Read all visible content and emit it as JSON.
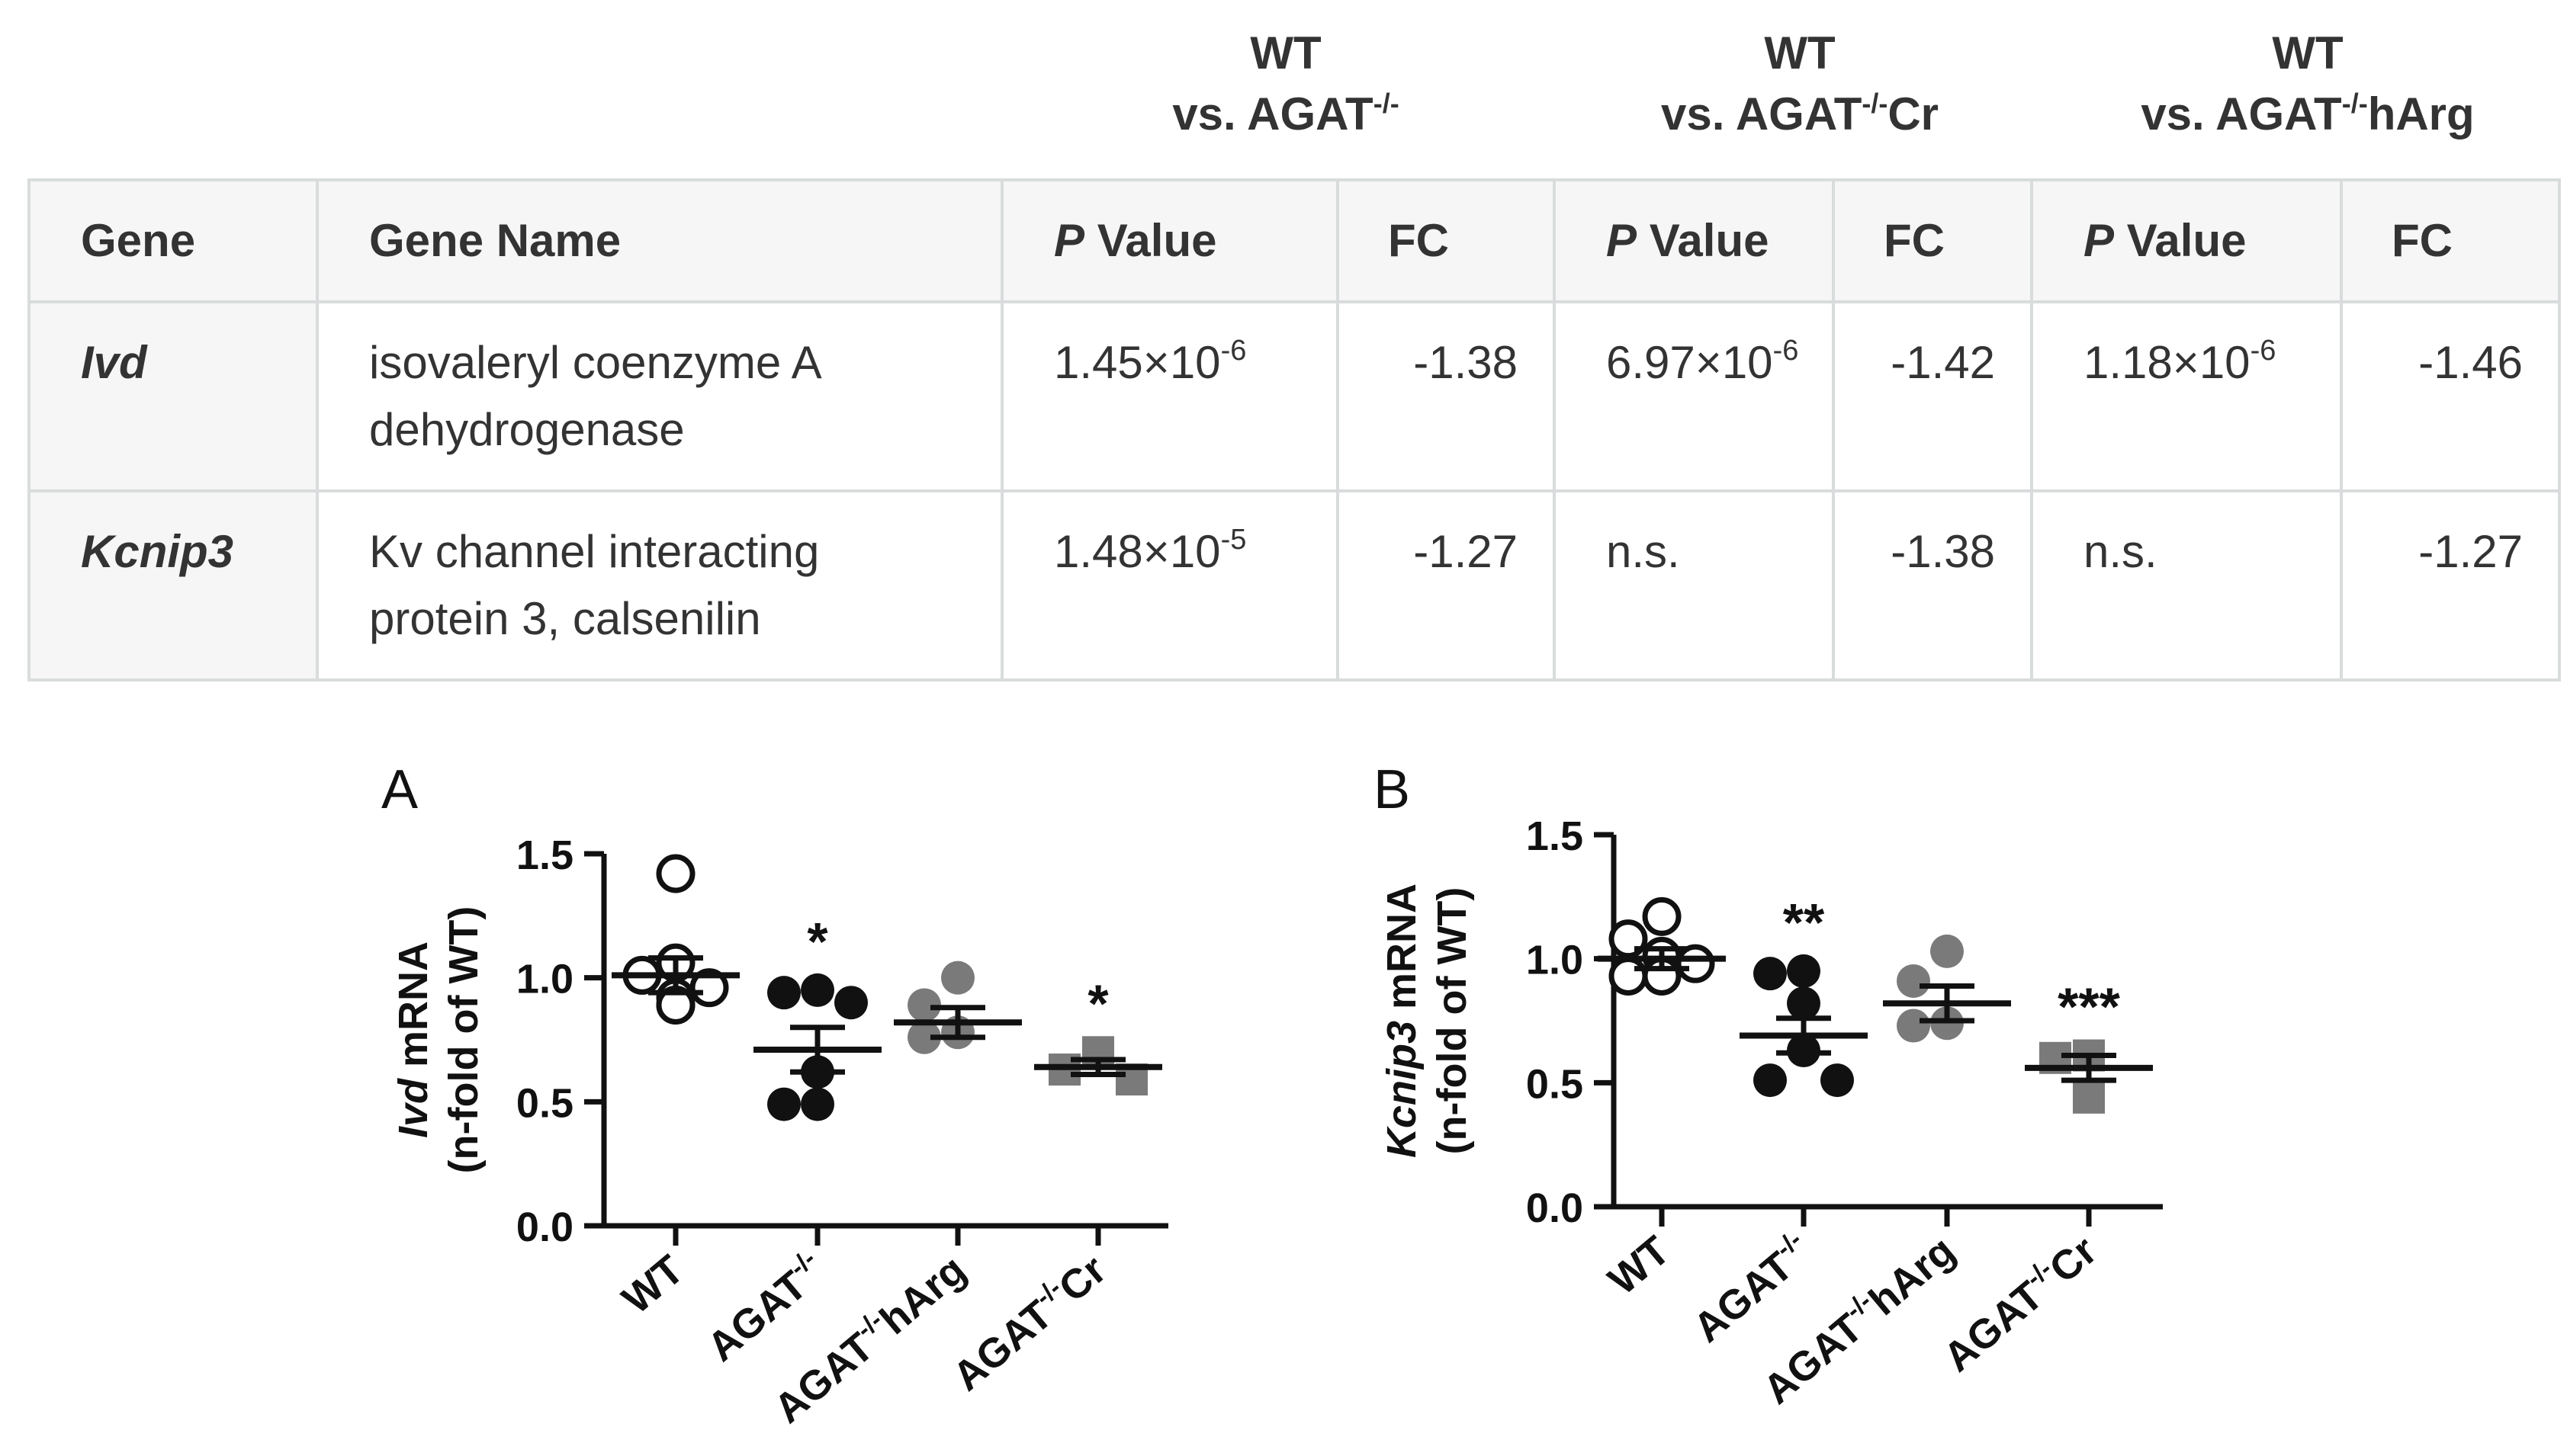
{
  "comparisons": [
    {
      "line1": "WT",
      "line2_prefix": "vs. AGAT",
      "line2_sup": "-/-",
      "line2_suffix": ""
    },
    {
      "line1": "WT",
      "line2_prefix": "vs. AGAT",
      "line2_sup": "-/-",
      "line2_suffix": "Cr"
    },
    {
      "line1": "WT",
      "line2_prefix": "vs. AGAT",
      "line2_sup": "-/-",
      "line2_suffix": "hArg"
    }
  ],
  "table": {
    "headers": {
      "gene": "Gene",
      "gene_name": "Gene Name",
      "p_italic": "P",
      "p_rest": " Value",
      "fc": "FC"
    },
    "rows": [
      {
        "gene": "Ivd",
        "name": "isovaleryl coenzyme A dehydrogenase",
        "values": [
          {
            "p": "1.45×10",
            "exp": "-6",
            "fc": "-1.38"
          },
          {
            "p": "6.97×10",
            "exp": "-6",
            "fc": "-1.42"
          },
          {
            "p": "1.18×10",
            "exp": "-6",
            "fc": "-1.46"
          }
        ]
      },
      {
        "gene": "Kcnip3",
        "name": "Kv channel interacting protein 3, calsenilin",
        "values": [
          {
            "p": "1.48×10",
            "exp": "-5",
            "fc": "-1.27"
          },
          {
            "p": "n.s.",
            "exp": "",
            "fc": "-1.38"
          },
          {
            "p": "n.s.",
            "exp": "",
            "fc": "-1.27"
          }
        ]
      }
    ]
  },
  "chart_data": [
    {
      "type": "scatter",
      "panel": "A",
      "ylabel_italic": "Ivd",
      "ylabel_rest": " mRNA",
      "ylabel_line2": "(n-fold of  WT)",
      "ylim": [
        0,
        1.5
      ],
      "yticks": [
        "0.0",
        "0.5",
        "1.0",
        "1.5"
      ],
      "groups": [
        {
          "label": "WT",
          "label_sup": "",
          "label_suffix": "",
          "color": "#ffffff",
          "stroke": "#111111",
          "marker": "circle",
          "mean": 1.01,
          "sem": 0.07,
          "points": [
            1.42,
            1.06,
            1.01,
            0.96,
            0.92,
            0.89,
            0.89
          ],
          "sig": ""
        },
        {
          "label": "AGAT",
          "label_sup": "-/-",
          "label_suffix": "",
          "color": "#111111",
          "stroke": "#111111",
          "marker": "circle",
          "mean": 0.71,
          "sem": 0.09,
          "points": [
            0.95,
            0.94,
            0.9,
            0.62,
            0.49,
            0.49
          ],
          "sig": "*"
        },
        {
          "label": "AGAT",
          "label_sup": "-/-",
          "label_suffix": "hArg",
          "color": "#7a7a7a",
          "stroke": "#7a7a7a",
          "marker": "circle",
          "mean": 0.82,
          "sem": 0.06,
          "points": [
            1.0,
            0.89,
            0.78,
            0.76
          ],
          "sig": ""
        },
        {
          "label": "AGAT",
          "label_sup": "-/-",
          "label_suffix": "Cr",
          "color": "#7a7a7a",
          "stroke": "#7a7a7a",
          "marker": "square",
          "mean": 0.64,
          "sem": 0.03,
          "points": [
            0.7,
            0.63,
            0.59
          ],
          "sig": "*"
        }
      ]
    },
    {
      "type": "scatter",
      "panel": "B",
      "ylabel_italic": "Kcnip3",
      "ylabel_rest": " mRNA",
      "ylabel_line2": "(n-fold of WT)",
      "ylim": [
        0,
        1.5
      ],
      "yticks": [
        "0.0",
        "0.5",
        "1.0",
        "1.5"
      ],
      "groups": [
        {
          "label": "WT",
          "label_sup": "",
          "label_suffix": "",
          "color": "#ffffff",
          "stroke": "#111111",
          "marker": "circle",
          "mean": 1.0,
          "sem": 0.04,
          "points": [
            1.17,
            1.08,
            1.01,
            0.98,
            0.93,
            0.93
          ],
          "sig": ""
        },
        {
          "label": "AGAT",
          "label_sup": "-/-",
          "label_suffix": "",
          "color": "#111111",
          "stroke": "#111111",
          "marker": "circle",
          "mean": 0.69,
          "sem": 0.07,
          "points": [
            0.95,
            0.94,
            0.82,
            0.63,
            0.51,
            0.51
          ],
          "sig": "**"
        },
        {
          "label": "AGAT",
          "label_sup": "-/-",
          "label_suffix": "hArg",
          "color": "#7a7a7a",
          "stroke": "#7a7a7a",
          "marker": "circle",
          "mean": 0.82,
          "sem": 0.07,
          "points": [
            1.03,
            0.91,
            0.74,
            0.73
          ],
          "sig": ""
        },
        {
          "label": "AGAT",
          "label_sup": "-/-",
          "label_suffix": "Cr",
          "color": "#7a7a7a",
          "stroke": "#7a7a7a",
          "marker": "square",
          "mean": 0.56,
          "sem": 0.05,
          "points": [
            0.61,
            0.6,
            0.44
          ],
          "sig": "***"
        }
      ]
    }
  ]
}
